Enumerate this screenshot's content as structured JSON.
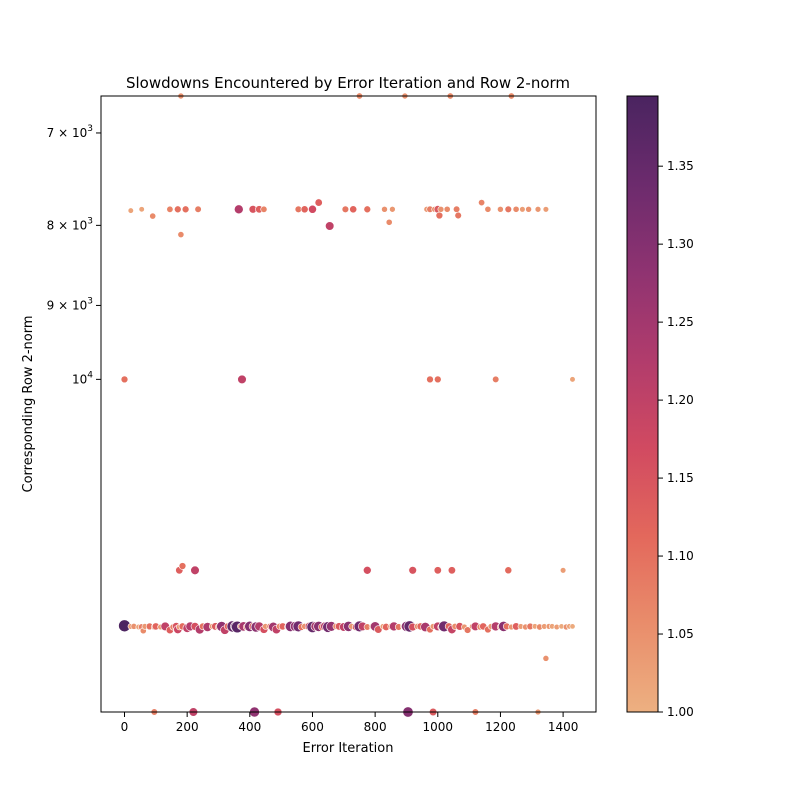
{
  "chart_data": {
    "type": "scatter",
    "title": "Slowdowns Encountered by Error Iteration and Row 2-norm",
    "xlabel": "Error Iteration",
    "ylabel": "Corresponding Row 2-norm",
    "xlim": [
      -75,
      1505
    ],
    "x_ticks": [
      0,
      200,
      400,
      600,
      800,
      1000,
      1200,
      1400
    ],
    "y_tick_labels": [
      {
        "text": "7×10³",
        "base": "7 × 10",
        "exp": "3",
        "frac": 0.06
      },
      {
        "text": "8×10³",
        "base": "8 × 10",
        "exp": "3",
        "frac": 0.21
      },
      {
        "text": "9×10³",
        "base": "9 × 10",
        "exp": "3",
        "frac": 0.34
      },
      {
        "text": "10⁴",
        "base": "10",
        "exp": "4",
        "frac": 0.46
      }
    ],
    "colorbar": {
      "range": [
        1.0,
        1.395
      ],
      "ticks": [
        "1.00",
        "1.05",
        "1.10",
        "1.15",
        "1.20",
        "1.25",
        "1.30",
        "1.35"
      ],
      "tick_values": [
        1.0,
        1.05,
        1.1,
        1.15,
        1.2,
        1.25,
        1.3,
        1.35
      ],
      "colormap": "flare",
      "stops": [
        "#edb081",
        "#e98d6b",
        "#e3685c",
        "#d14a61",
        "#b13c6c",
        "#8f3371",
        "#6c2b6d",
        "#4a2460"
      ]
    },
    "grid": false,
    "points": [
      [
        0,
        0.861,
        1.11
      ],
      [
        0,
        0.86,
        1.39
      ],
      [
        20,
        0.861,
        1.03
      ],
      [
        30,
        0.861,
        1.05
      ],
      [
        45,
        0.862,
        1.02
      ],
      [
        55,
        0.862,
        1.08
      ],
      [
        60,
        0.868,
        1.06
      ],
      [
        65,
        0.861,
        1.04
      ],
      [
        80,
        0.861,
        1.1
      ],
      [
        95,
        0.862,
        1.06
      ],
      [
        100,
        0.861,
        1.12
      ],
      [
        115,
        0.862,
        1.03
      ],
      [
        130,
        0.861,
        1.2
      ],
      [
        145,
        0.867,
        1.13
      ],
      [
        155,
        0.862,
        1.07
      ],
      [
        165,
        0.861,
        1.15
      ],
      [
        170,
        0.866,
        1.18
      ],
      [
        175,
        0.862,
        1.04
      ],
      [
        185,
        0.861,
        1.11
      ],
      [
        200,
        0.864,
        1.2
      ],
      [
        210,
        0.861,
        1.22
      ],
      [
        225,
        0.861,
        1.16
      ],
      [
        240,
        0.866,
        1.22
      ],
      [
        250,
        0.861,
        1.1
      ],
      [
        265,
        0.862,
        1.23
      ],
      [
        280,
        0.861,
        1.04
      ],
      [
        290,
        0.861,
        1.14
      ],
      [
        300,
        0.862,
        1.07
      ],
      [
        310,
        0.861,
        1.28
      ],
      [
        320,
        0.867,
        1.2
      ],
      [
        330,
        0.861,
        1.12
      ],
      [
        345,
        0.861,
        1.35
      ],
      [
        355,
        0.861,
        1.3
      ],
      [
        360,
        0.862,
        1.37
      ],
      [
        370,
        0.861,
        1.05
      ],
      [
        380,
        0.861,
        1.24
      ],
      [
        390,
        0.862,
        1.1
      ],
      [
        400,
        0.861,
        1.3
      ],
      [
        410,
        0.861,
        1.14
      ],
      [
        420,
        0.862,
        1.29
      ],
      [
        430,
        0.861,
        1.22
      ],
      [
        445,
        0.866,
        1.16
      ],
      [
        450,
        0.861,
        1.04
      ],
      [
        465,
        0.861,
        1.09
      ],
      [
        475,
        0.862,
        1.25
      ],
      [
        485,
        0.866,
        1.2
      ],
      [
        495,
        0.861,
        1.07
      ],
      [
        505,
        0.861,
        1.12
      ],
      [
        520,
        0.862,
        1.04
      ],
      [
        530,
        0.861,
        1.3
      ],
      [
        545,
        0.861,
        1.27
      ],
      [
        555,
        0.861,
        1.33
      ],
      [
        565,
        0.862,
        1.1
      ],
      [
        575,
        0.861,
        1.05
      ],
      [
        590,
        0.861,
        1.18
      ],
      [
        600,
        0.862,
        1.35
      ],
      [
        610,
        0.861,
        1.24
      ],
      [
        620,
        0.861,
        1.29
      ],
      [
        630,
        0.862,
        1.1
      ],
      [
        640,
        0.861,
        1.21
      ],
      [
        650,
        0.862,
        1.33
      ],
      [
        660,
        0.861,
        1.27
      ],
      [
        675,
        0.861,
        1.06
      ],
      [
        685,
        0.861,
        1.14
      ],
      [
        700,
        0.862,
        1.2
      ],
      [
        715,
        0.861,
        1.29
      ],
      [
        725,
        0.861,
        1.04
      ],
      [
        740,
        0.862,
        1.15
      ],
      [
        750,
        0.861,
        1.33
      ],
      [
        760,
        0.861,
        1.2
      ],
      [
        775,
        0.862,
        1.08
      ],
      [
        790,
        0.861,
        1.04
      ],
      [
        800,
        0.861,
        1.25
      ],
      [
        810,
        0.866,
        1.14
      ],
      [
        825,
        0.861,
        1.03
      ],
      [
        835,
        0.862,
        1.12
      ],
      [
        850,
        0.861,
        1.05
      ],
      [
        860,
        0.861,
        1.22
      ],
      [
        875,
        0.862,
        1.09
      ],
      [
        890,
        0.861,
        1.03
      ],
      [
        900,
        0.861,
        1.29
      ],
      [
        910,
        0.861,
        1.35
      ],
      [
        920,
        0.862,
        1.16
      ],
      [
        935,
        0.861,
        1.05
      ],
      [
        945,
        0.861,
        1.12
      ],
      [
        960,
        0.862,
        1.24
      ],
      [
        975,
        0.866,
        1.1
      ],
      [
        985,
        0.861,
        1.04
      ],
      [
        1000,
        0.861,
        1.2
      ],
      [
        1010,
        0.862,
        1.07
      ],
      [
        1020,
        0.861,
        1.33
      ],
      [
        1035,
        0.861,
        1.12
      ],
      [
        1045,
        0.866,
        1.19
      ],
      [
        1055,
        0.861,
        1.06
      ],
      [
        1070,
        0.861,
        1.15
      ],
      [
        1085,
        0.862,
        1.04
      ],
      [
        1095,
        0.867,
        1.09
      ],
      [
        1110,
        0.861,
        1.03
      ],
      [
        1120,
        0.861,
        1.2
      ],
      [
        1135,
        0.862,
        1.06
      ],
      [
        1145,
        0.861,
        1.12
      ],
      [
        1160,
        0.866,
        1.1
      ],
      [
        1170,
        0.861,
        1.04
      ],
      [
        1185,
        0.861,
        1.22
      ],
      [
        1200,
        0.862,
        1.07
      ],
      [
        1210,
        0.861,
        1.29
      ],
      [
        1220,
        0.861,
        1.1
      ],
      [
        1235,
        0.862,
        1.04
      ],
      [
        1250,
        0.861,
        1.13
      ],
      [
        1265,
        0.861,
        1.03
      ],
      [
        1280,
        0.862,
        1.05
      ],
      [
        1295,
        0.861,
        1.09
      ],
      [
        1310,
        0.861,
        1.02
      ],
      [
        1325,
        0.862,
        1.06
      ],
      [
        1340,
        0.861,
        1.03
      ],
      [
        1355,
        0.861,
        1.04
      ],
      [
        1365,
        0.861,
        1.02
      ],
      [
        1380,
        0.862,
        1.03
      ],
      [
        1395,
        0.861,
        1.01
      ],
      [
        1410,
        0.862,
        1.05
      ],
      [
        1420,
        0.861,
        1.02
      ],
      [
        1430,
        0.861,
        1.01
      ],
      [
        0,
        0.46,
        1.1
      ],
      [
        375,
        0.46,
        1.2
      ],
      [
        975,
        0.46,
        1.1
      ],
      [
        1000,
        0.46,
        1.1
      ],
      [
        1185,
        0.46,
        1.08
      ],
      [
        1430,
        0.46,
        1.02
      ],
      [
        20,
        0.186,
        1.02
      ],
      [
        55,
        0.184,
        1.02
      ],
      [
        90,
        0.195,
        1.06
      ],
      [
        145,
        0.184,
        1.07
      ],
      [
        170,
        0.184,
        1.1
      ],
      [
        180,
        0.225,
        1.06
      ],
      [
        195,
        0.184,
        1.1
      ],
      [
        235,
        0.184,
        1.08
      ],
      [
        365,
        0.184,
        1.22
      ],
      [
        410,
        0.184,
        1.15
      ],
      [
        430,
        0.184,
        1.13
      ],
      [
        445,
        0.184,
        1.07
      ],
      [
        555,
        0.184,
        1.09
      ],
      [
        575,
        0.184,
        1.12
      ],
      [
        600,
        0.184,
        1.17
      ],
      [
        620,
        0.173,
        1.13
      ],
      [
        655,
        0.211,
        1.2
      ],
      [
        705,
        0.184,
        1.09
      ],
      [
        730,
        0.184,
        1.12
      ],
      [
        775,
        0.184,
        1.1
      ],
      [
        830,
        0.184,
        1.05
      ],
      [
        845,
        0.205,
        1.06
      ],
      [
        855,
        0.184,
        1.04
      ],
      [
        965,
        0.184,
        1.04
      ],
      [
        975,
        0.184,
        1.08
      ],
      [
        990,
        0.184,
        1.05
      ],
      [
        1000,
        0.184,
        1.14
      ],
      [
        1005,
        0.194,
        1.1
      ],
      [
        1010,
        0.184,
        1.05
      ],
      [
        1030,
        0.184,
        1.06
      ],
      [
        1060,
        0.184,
        1.08
      ],
      [
        1065,
        0.194,
        1.09
      ],
      [
        1140,
        0.173,
        1.07
      ],
      [
        1160,
        0.184,
        1.06
      ],
      [
        1200,
        0.184,
        1.05
      ],
      [
        1225,
        0.184,
        1.09
      ],
      [
        1250,
        0.184,
        1.06
      ],
      [
        1270,
        0.184,
        1.03
      ],
      [
        1290,
        0.184,
        1.05
      ],
      [
        1320,
        0.184,
        1.04
      ],
      [
        1345,
        0.184,
        1.03
      ],
      [
        180,
        0.0,
        1.05
      ],
      [
        750,
        0.0,
        1.06
      ],
      [
        895,
        0.0,
        1.05
      ],
      [
        1040,
        0.0,
        1.06
      ],
      [
        1235,
        0.0,
        1.06
      ],
      [
        175,
        0.77,
        1.13
      ],
      [
        185,
        0.763,
        1.1
      ],
      [
        225,
        0.77,
        1.2
      ],
      [
        775,
        0.77,
        1.16
      ],
      [
        920,
        0.77,
        1.15
      ],
      [
        1000,
        0.77,
        1.13
      ],
      [
        1045,
        0.77,
        1.13
      ],
      [
        1225,
        0.77,
        1.11
      ],
      [
        1400,
        0.77,
        1.03
      ],
      [
        1345,
        0.913,
        1.05
      ],
      [
        95,
        1.0,
        1.08
      ],
      [
        220,
        1.0,
        1.2
      ],
      [
        415,
        1.0,
        1.28
      ],
      [
        490,
        1.0,
        1.16
      ],
      [
        905,
        1.0,
        1.3
      ],
      [
        985,
        1.0,
        1.14
      ],
      [
        1120,
        1.0,
        1.08
      ],
      [
        1320,
        1.0,
        1.04
      ]
    ]
  }
}
